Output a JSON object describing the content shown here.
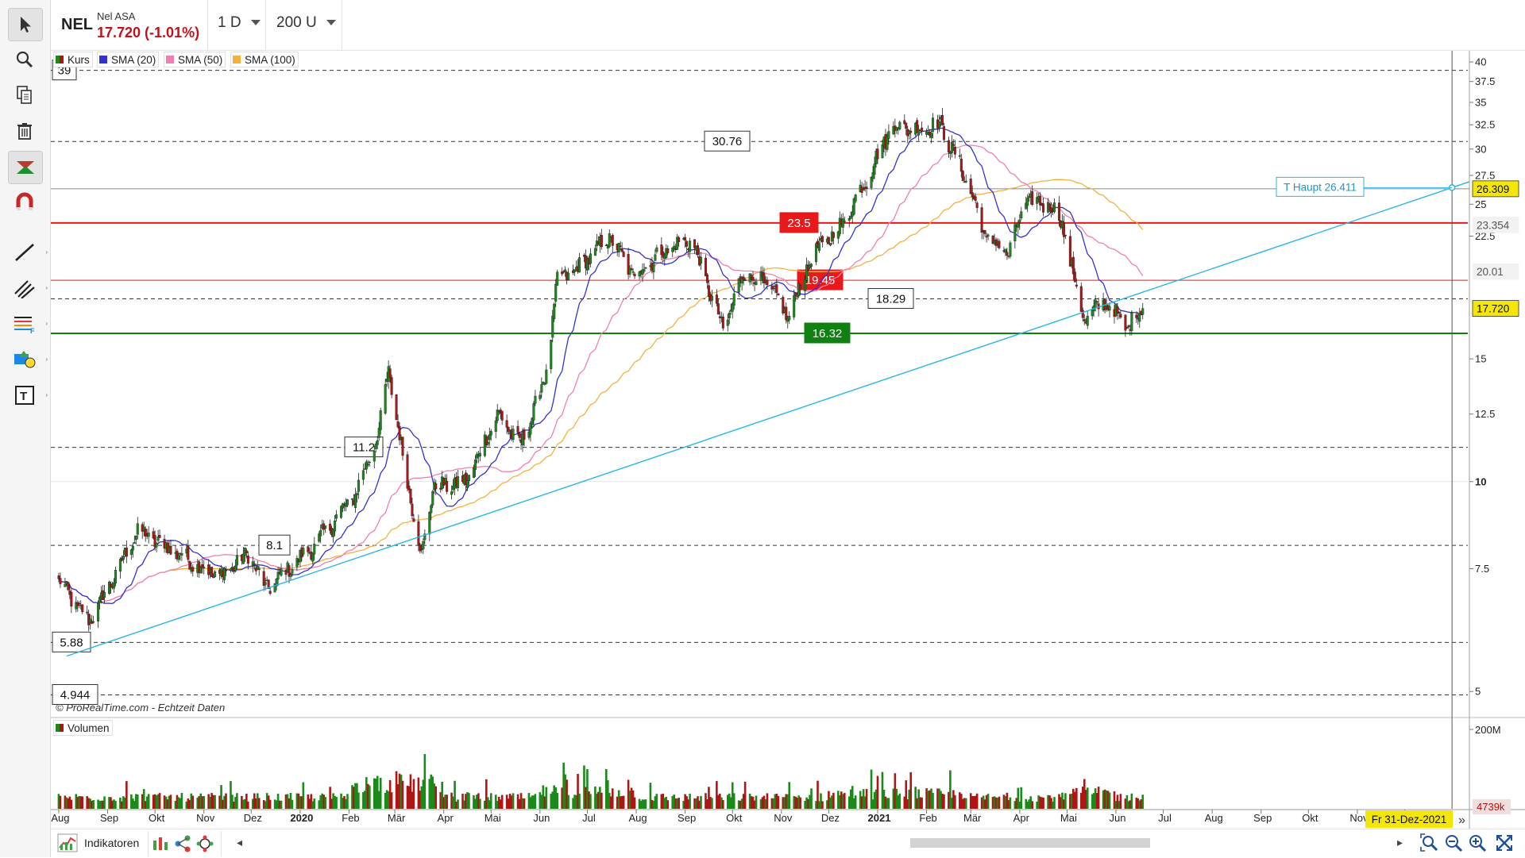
{
  "header": {
    "symbol": "NEL",
    "name": "Nel ASA",
    "price_change": "17.720 (-1.01%)",
    "interval": "1 D",
    "units": "200 U"
  },
  "colors": {
    "up": "#1a8a1a",
    "down": "#b01515",
    "sma20": "#3333cc",
    "sma50": "#f080b0",
    "sma100": "#f5b040",
    "trend": "#29b6e6",
    "red_level": "#e8191a",
    "green_level": "#108010"
  },
  "legend": {
    "kurs": "Kurs",
    "sma20": "SMA (20)",
    "sma50": "SMA (50)",
    "sma100": "SMA (100)",
    "volume": "Volumen"
  },
  "watermark": "© ProRealTime.com - Echtzeit Daten",
  "bottom": {
    "indicators": "Indikatoren",
    "date_label": "Fr 31-Dez-2021"
  },
  "chart_data": {
    "type": "candlestick",
    "y_scale": "log",
    "ylim": [
      4.6,
      41.5
    ],
    "yticks": [
      "40",
      "37.5",
      "35",
      "32.5",
      "30",
      "27.5",
      "25",
      "22.5",
      "15",
      "12.5",
      "10",
      "7.5",
      "5"
    ],
    "ytick_values": [
      40,
      37.5,
      35,
      32.5,
      30,
      27.5,
      25,
      22.5,
      15,
      12.5,
      10,
      7.5,
      5
    ],
    "x_labels": [
      "Aug",
      "Sep",
      "Okt",
      "Nov",
      "Dez",
      "2020",
      "Feb",
      "Mär",
      "Apr",
      "Mai",
      "Jun",
      "Jul",
      "Aug",
      "Sep",
      "Okt",
      "Nov",
      "Dez",
      "2021",
      "Feb",
      "Mär",
      "Apr",
      "Mai",
      "Jun",
      "Jul",
      "Aug",
      "Sep",
      "Okt",
      "Nov",
      "Dez"
    ],
    "x_label_dates": [
      "2019-08",
      "2019-09",
      "2019-10",
      "2019-11",
      "2019-12",
      "2020-01",
      "2020-02",
      "2020-03",
      "2020-04",
      "2020-05",
      "2020-06",
      "2020-07",
      "2020-08",
      "2020-09",
      "2020-10",
      "2020-11",
      "2020-12",
      "2021-01",
      "2021-02",
      "2021-03",
      "2021-04",
      "2021-05",
      "2021-06",
      "2021-07",
      "2021-08",
      "2021-09",
      "2021-10",
      "2021-11",
      "2021-12"
    ],
    "price_anchors": [
      {
        "date": "2019-08-01",
        "value": 7.2
      },
      {
        "date": "2019-08-20",
        "value": 6.3
      },
      {
        "date": "2019-09-01",
        "value": 7.0
      },
      {
        "date": "2019-09-20",
        "value": 8.5
      },
      {
        "date": "2019-10-15",
        "value": 7.9
      },
      {
        "date": "2019-11-10",
        "value": 7.3
      },
      {
        "date": "2019-11-30",
        "value": 7.9
      },
      {
        "date": "2019-12-10",
        "value": 7.0
      },
      {
        "date": "2020-01-10",
        "value": 8.1
      },
      {
        "date": "2020-02-05",
        "value": 9.6
      },
      {
        "date": "2020-02-20",
        "value": 11.8
      },
      {
        "date": "2020-02-26",
        "value": 14.5
      },
      {
        "date": "2020-03-05",
        "value": 11.2
      },
      {
        "date": "2020-03-18",
        "value": 7.8
      },
      {
        "date": "2020-03-25",
        "value": 9.8
      },
      {
        "date": "2020-04-15",
        "value": 10.0
      },
      {
        "date": "2020-05-05",
        "value": 12.5
      },
      {
        "date": "2020-05-20",
        "value": 11.3
      },
      {
        "date": "2020-06-05",
        "value": 14.3
      },
      {
        "date": "2020-06-12",
        "value": 19.5
      },
      {
        "date": "2020-06-25",
        "value": 20.2
      },
      {
        "date": "2020-07-15",
        "value": 22.5
      },
      {
        "date": "2020-07-30",
        "value": 19.8
      },
      {
        "date": "2020-08-20",
        "value": 21.5
      },
      {
        "date": "2020-09-05",
        "value": 22.3
      },
      {
        "date": "2020-09-25",
        "value": 16.5
      },
      {
        "date": "2020-10-08",
        "value": 20.0
      },
      {
        "date": "2020-10-25",
        "value": 19.0
      },
      {
        "date": "2020-11-05",
        "value": 17.2
      },
      {
        "date": "2020-11-20",
        "value": 21.0
      },
      {
        "date": "2020-12-10",
        "value": 23.5
      },
      {
        "date": "2020-12-28",
        "value": 28.0
      },
      {
        "date": "2021-01-10",
        "value": 32.5
      },
      {
        "date": "2021-01-25",
        "value": 32.0
      },
      {
        "date": "2021-02-10",
        "value": 32.5
      },
      {
        "date": "2021-02-28",
        "value": 26.5
      },
      {
        "date": "2021-03-10",
        "value": 22.5
      },
      {
        "date": "2021-03-25",
        "value": 21.3
      },
      {
        "date": "2021-04-05",
        "value": 25.3
      },
      {
        "date": "2021-04-20",
        "value": 25.0
      },
      {
        "date": "2021-04-28",
        "value": 23.5
      },
      {
        "date": "2021-05-05",
        "value": 19.8
      },
      {
        "date": "2021-05-12",
        "value": 17.0
      },
      {
        "date": "2021-05-25",
        "value": 18.2
      },
      {
        "date": "2021-06-08",
        "value": 16.6
      },
      {
        "date": "2021-06-18",
        "value": 17.72
      }
    ],
    "candle_range": [
      "2019-08-01",
      "2021-06-18"
    ],
    "last_price": 17.72,
    "right_labels": [
      {
        "text": "26.309",
        "value": 26.309,
        "color": "#f5e60a"
      },
      {
        "text": "23.354",
        "value": 23.354,
        "color": "#f2f2f2"
      },
      {
        "text": "20.01",
        "value": 20.01,
        "color": "#f2f2f2"
      },
      {
        "text": "17.720",
        "value": 17.72,
        "color": "#f5e60a"
      }
    ],
    "levels": [
      {
        "text": "39",
        "value": 38.9,
        "style": "dashed",
        "label_color": "#ffffff"
      },
      {
        "text": "30.76",
        "value": 30.76,
        "style": "dashed",
        "label_color": "#ffffff"
      },
      {
        "text": "23.5",
        "value": 23.5,
        "style": "red",
        "label_color": "#e8191a"
      },
      {
        "text": "19.45",
        "value": 19.45,
        "style": "redthin",
        "label_color": "#e8191a"
      },
      {
        "text": "18.29",
        "value": 18.29,
        "style": "dashed",
        "label_color": "#ffffff"
      },
      {
        "text": "16.32",
        "value": 16.32,
        "style": "green",
        "label_color": "#108010"
      },
      {
        "text": "11.2",
        "value": 11.2,
        "style": "dashed",
        "label_color": "#ffffff"
      },
      {
        "text": "8.1",
        "value": 8.1,
        "style": "dashed",
        "label_color": "#ffffff"
      },
      {
        "text": "5.88",
        "value": 5.88,
        "style": "dashed",
        "label_color": "#ffffff"
      },
      {
        "text": "4.944",
        "value": 4.944,
        "style": "dashed",
        "label_color": "#ffffff"
      }
    ],
    "trendline": {
      "label": "T Haupt 26.411",
      "value_at_marker": 26.411,
      "start_date": "2019-08-06",
      "start_value": 5.62,
      "marker_date": "2021-12-31"
    },
    "volume_axis": [
      "200M",
      "4739k"
    ],
    "volume_max": 200
  }
}
